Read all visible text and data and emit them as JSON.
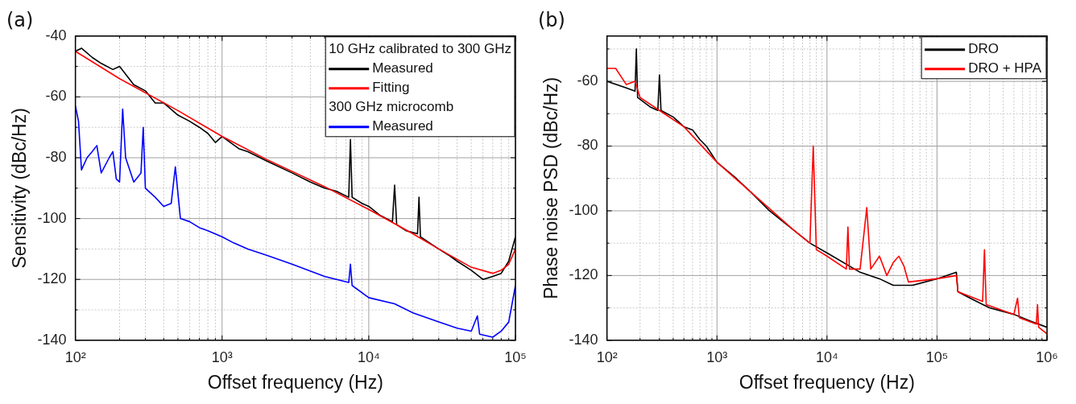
{
  "chart_data": [
    {
      "type": "line",
      "title": "(a)",
      "xlabel": "Offset frequency (Hz)",
      "ylabel": "Sensitivity (dBc/Hz)",
      "log": "x",
      "grid": true,
      "legend": "top right",
      "marker": "none",
      "line_style": "solid",
      "annotations": [
        "10 GHz calibrated to 300 GHz",
        "300 GHz microcomb"
      ],
      "xlim": [
        100,
        100000
      ],
      "ylim": [
        -140,
        -40
      ],
      "xticks": [
        {
          "value": 100,
          "label": "10²"
        },
        {
          "value": 200,
          "label": null
        },
        {
          "value": 300,
          "label": null
        },
        {
          "value": 400,
          "label": null
        },
        {
          "value": 500,
          "label": null
        },
        {
          "value": 600,
          "label": null
        },
        {
          "value": 700,
          "label": null
        },
        {
          "value": 800,
          "label": null
        },
        {
          "value": 900,
          "label": null
        },
        {
          "value": 1000,
          "label": "10³"
        },
        {
          "value": 2000,
          "label": null
        },
        {
          "value": 3000,
          "label": null
        },
        {
          "value": 4000,
          "label": null
        },
        {
          "value": 5000,
          "label": null
        },
        {
          "value": 6000,
          "label": null
        },
        {
          "value": 7000,
          "label": null
        },
        {
          "value": 8000,
          "label": null
        },
        {
          "value": 9000,
          "label": null
        },
        {
          "value": 10000,
          "label": "10⁴"
        },
        {
          "value": 20000,
          "label": null
        },
        {
          "value": 30000,
          "label": null
        },
        {
          "value": 40000,
          "label": null
        },
        {
          "value": 50000,
          "label": null
        },
        {
          "value": 60000,
          "label": null
        },
        {
          "value": 70000,
          "label": null
        },
        {
          "value": 80000,
          "label": null
        },
        {
          "value": 90000,
          "label": null
        },
        {
          "value": 100000,
          "label": "10⁵"
        }
      ],
      "yticks": [
        -140,
        {
          "value": -130,
          "label": null
        },
        -120,
        {
          "value": -110,
          "label": null
        },
        -100,
        {
          "value": -90,
          "label": null
        },
        -80,
        {
          "value": -70,
          "label": null
        },
        -60,
        {
          "value": -50,
          "label": null
        },
        -40
      ],
      "series": [
        {
          "name": "Measured",
          "color": "#000000",
          "x": [
            100,
            110,
            130,
            150,
            180,
            200,
            250,
            300,
            350,
            400,
            500,
            600,
            700,
            800,
            900,
            1000,
            1300,
            1500,
            2000,
            3000,
            4000,
            5000,
            6000,
            7300,
            7500,
            7700,
            9000,
            10000,
            12000,
            14500,
            15000,
            15500,
            18000,
            21500,
            22000,
            22500,
            26000,
            30000,
            35000,
            40000,
            50000,
            60000,
            70000,
            80000,
            90000,
            100000
          ],
          "values": [
            -45,
            -44,
            -47,
            -49,
            -51,
            -50,
            -56,
            -58,
            -62,
            -62,
            -66,
            -68,
            -70,
            -72,
            -75,
            -73,
            -77,
            -78,
            -81,
            -85,
            -88,
            -90,
            -91,
            -93,
            -74,
            -93,
            -95,
            -96,
            -99,
            -101,
            -89,
            -102,
            -104,
            -105,
            -93,
            -106,
            -108,
            -110,
            -112,
            -114,
            -117,
            -120,
            -119,
            -118,
            -114,
            -106
          ]
        },
        {
          "name": "Fitting",
          "color": "#ff0000",
          "x": [
            100,
            200,
            500,
            1000,
            2000,
            5000,
            10000,
            20000,
            30000,
            50000,
            70000,
            80000,
            90000,
            100000
          ],
          "values": [
            -45,
            -54,
            -64.5,
            -73,
            -80.5,
            -89.5,
            -97,
            -105,
            -110,
            -116,
            -118,
            -117,
            -115,
            -110
          ]
        },
        {
          "name": "Measured",
          "color": "#0000ff",
          "x": [
            100,
            105,
            110,
            120,
            130,
            140,
            150,
            170,
            180,
            190,
            200,
            210,
            220,
            250,
            280,
            290,
            300,
            350,
            400,
            450,
            480,
            520,
            600,
            700,
            800,
            1000,
            1200,
            1500,
            2000,
            3000,
            5000,
            7300,
            7500,
            7700,
            10000,
            15000,
            20000,
            30000,
            40000,
            50000,
            55000,
            57000,
            70000,
            80000,
            90000,
            100000
          ],
          "values": [
            -63,
            -68,
            -84,
            -80,
            -78,
            -76,
            -85,
            -80,
            -78,
            -87,
            -88,
            -64,
            -80,
            -88,
            -85,
            -70,
            -90,
            -93,
            -96,
            -95,
            -83,
            -100,
            -101,
            -103,
            -104,
            -106,
            -108,
            -110,
            -112,
            -115,
            -119,
            -121,
            -115,
            -122,
            -126,
            -128,
            -131,
            -134,
            -136,
            -137,
            -132,
            -138,
            -139,
            -137,
            -134,
            -122
          ]
        }
      ]
    },
    {
      "type": "line",
      "title": "(b)",
      "xlabel": "Offset frequency (Hz)",
      "ylabel": "Phase noise PSD (dBc/Hz)",
      "log": "x",
      "grid": true,
      "legend": "top right",
      "marker": "none",
      "line_style": "solid",
      "xlim": [
        100,
        1000000
      ],
      "ylim": [
        -140,
        -46
      ],
      "xticks": [
        {
          "value": 100,
          "label": "10²"
        },
        {
          "value": 200,
          "label": null
        },
        {
          "value": 300,
          "label": null
        },
        {
          "value": 400,
          "label": null
        },
        {
          "value": 500,
          "label": null
        },
        {
          "value": 600,
          "label": null
        },
        {
          "value": 700,
          "label": null
        },
        {
          "value": 800,
          "label": null
        },
        {
          "value": 900,
          "label": null
        },
        {
          "value": 1000,
          "label": "10³"
        },
        {
          "value": 2000,
          "label": null
        },
        {
          "value": 3000,
          "label": null
        },
        {
          "value": 4000,
          "label": null
        },
        {
          "value": 5000,
          "label": null
        },
        {
          "value": 6000,
          "label": null
        },
        {
          "value": 7000,
          "label": null
        },
        {
          "value": 8000,
          "label": null
        },
        {
          "value": 9000,
          "label": null
        },
        {
          "value": 10000,
          "label": "10⁴"
        },
        {
          "value": 20000,
          "label": null
        },
        {
          "value": 30000,
          "label": null
        },
        {
          "value": 40000,
          "label": null
        },
        {
          "value": 50000,
          "label": null
        },
        {
          "value": 60000,
          "label": null
        },
        {
          "value": 70000,
          "label": null
        },
        {
          "value": 80000,
          "label": null
        },
        {
          "value": 90000,
          "label": null
        },
        {
          "value": 100000,
          "label": "10⁵"
        },
        {
          "value": 200000,
          "label": null
        },
        {
          "value": 300000,
          "label": null
        },
        {
          "value": 400000,
          "label": null
        },
        {
          "value": 500000,
          "label": null
        },
        {
          "value": 600000,
          "label": null
        },
        {
          "value": 700000,
          "label": null
        },
        {
          "value": 800000,
          "label": null
        },
        {
          "value": 900000,
          "label": null
        },
        {
          "value": 1000000,
          "label": "10⁶"
        }
      ],
      "yticks": [
        -140,
        {
          "value": -130,
          "label": null
        },
        -120,
        {
          "value": -110,
          "label": null
        },
        -100,
        {
          "value": -90,
          "label": null
        },
        -80,
        {
          "value": -70,
          "label": null
        },
        -60,
        {
          "value": -50,
          "label": null
        }
      ],
      "series": [
        {
          "name": "DRO",
          "color": "#000000",
          "x": [
            100,
            150,
            180,
            185,
            190,
            250,
            290,
            300,
            310,
            400,
            500,
            600,
            700,
            800,
            1000,
            1500,
            2000,
            3000,
            5000,
            7000,
            10000,
            20000,
            30000,
            40000,
            60000,
            100000,
            150000,
            155000,
            200000,
            300000,
            500000,
            700000,
            1000000
          ],
          "values": [
            -60,
            -62,
            -63,
            -50,
            -65,
            -68,
            -69,
            -58,
            -69,
            -71,
            -74,
            -75,
            -78,
            -80,
            -85,
            -90,
            -94,
            -100,
            -106,
            -110,
            -113,
            -119,
            -121,
            -123,
            -123,
            -121,
            -119,
            -125,
            -127,
            -130,
            -132,
            -134,
            -136
          ]
        },
        {
          "name": "DRO + HPA",
          "color": "#ff0000",
          "x": [
            100,
            120,
            150,
            180,
            200,
            300,
            500,
            1000,
            2000,
            5000,
            7000,
            7500,
            8000,
            10000,
            15000,
            15500,
            16000,
            20000,
            23000,
            25000,
            30000,
            35000,
            40000,
            45000,
            50000,
            55000,
            100000,
            150000,
            155000,
            260000,
            270000,
            280000,
            500000,
            540000,
            560000,
            800000,
            820000,
            840000,
            1000000
          ],
          "values": [
            -56,
            -56,
            -61,
            -60,
            -65,
            -69,
            -74,
            -85,
            -94,
            -106,
            -110,
            -80,
            -112,
            -114,
            -118,
            -105,
            -118,
            -118,
            -99,
            -118,
            -114,
            -120,
            -116,
            -114,
            -117,
            -122,
            -121,
            -120,
            -125,
            -128,
            -112,
            -129,
            -132,
            -127,
            -133,
            -135,
            -129,
            -136,
            -138
          ]
        }
      ]
    }
  ]
}
